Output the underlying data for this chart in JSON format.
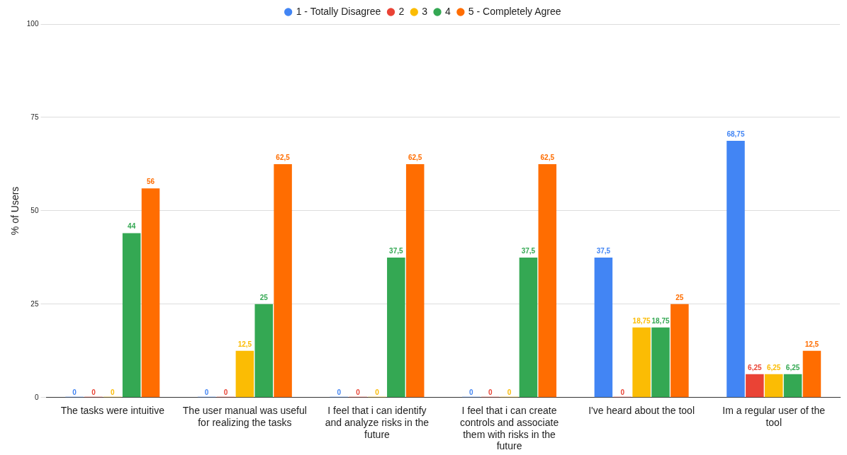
{
  "chart_data": {
    "type": "bar",
    "ylabel": "% of Users",
    "categories": [
      "The tasks were intuitive",
      "The user manual was useful for realizing the tasks",
      "I feel that i can identify and analyze risks in the future",
      "I feel that i can create controls and associate them with risks in the future",
      "I've heard about the tool",
      "Im a regular user of the tool"
    ],
    "series": [
      {
        "name": "1 - Totally Disagree",
        "color": "#4285f4",
        "values": [
          0,
          0,
          0,
          0,
          37.5,
          68.75
        ],
        "value_labels": [
          "0",
          "0",
          "0",
          "0",
          "37,5",
          "68,75"
        ]
      },
      {
        "name": "2",
        "color": "#ea4335",
        "values": [
          0,
          0,
          0,
          0,
          0,
          6.25
        ],
        "value_labels": [
          "0",
          "0",
          "0",
          "0",
          "0",
          "6,25"
        ]
      },
      {
        "name": "3",
        "color": "#fbbc04",
        "values": [
          0,
          12.5,
          0,
          0,
          18.75,
          6.25
        ],
        "value_labels": [
          "0",
          "12,5",
          "0",
          "0",
          "18,75",
          "6,25"
        ]
      },
      {
        "name": "4",
        "color": "#34a853",
        "values": [
          44,
          25,
          37.5,
          37.5,
          18.75,
          6.25
        ],
        "value_labels": [
          "44",
          "25",
          "37,5",
          "37,5",
          "18,75",
          "6,25"
        ]
      },
      {
        "name": "5 - Completely Agree",
        "color": "#ff6d01",
        "values": [
          56,
          62.5,
          62.5,
          62.5,
          25,
          12.5
        ],
        "value_labels": [
          "56",
          "62,5",
          "62,5",
          "62,5",
          "25",
          "12,5"
        ]
      }
    ],
    "ylim": [
      0,
      100
    ],
    "yticks": [
      0,
      25,
      50,
      75,
      100
    ],
    "grid": "y",
    "legend": "top"
  }
}
